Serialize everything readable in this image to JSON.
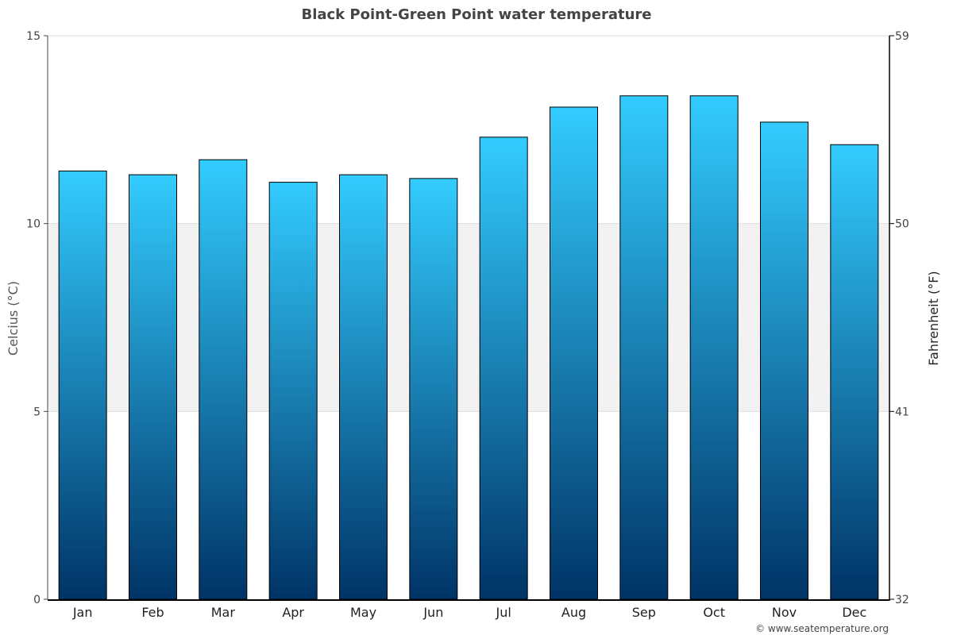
{
  "chart_data": {
    "type": "bar",
    "title": "Black Point-Green Point water temperature",
    "categories": [
      "Jan",
      "Feb",
      "Mar",
      "Apr",
      "May",
      "Jun",
      "Jul",
      "Aug",
      "Sep",
      "Oct",
      "Nov",
      "Dec"
    ],
    "series": [
      {
        "values": [
          11.4,
          11.3,
          11.7,
          11.1,
          11.3,
          11.2,
          12.3,
          13.1,
          13.4,
          13.4,
          12.7,
          12.1
        ]
      }
    ],
    "ylabel": "Celcius (°C)",
    "y2label": "Fahrenheit (°F)",
    "ylim": [
      0,
      15
    ],
    "yticks": [
      0,
      5,
      10,
      15
    ],
    "y2lim": [
      32,
      59
    ],
    "y2ticks": [
      32,
      41,
      50,
      59
    ],
    "band": [
      5,
      10
    ],
    "grid": true,
    "colors": {
      "bar_top": "#33ccff",
      "bar_bottom": "#003366",
      "band": "#f2f2f2",
      "gridline": "#dddddd"
    }
  },
  "credit": "© www.seatemperature.org"
}
